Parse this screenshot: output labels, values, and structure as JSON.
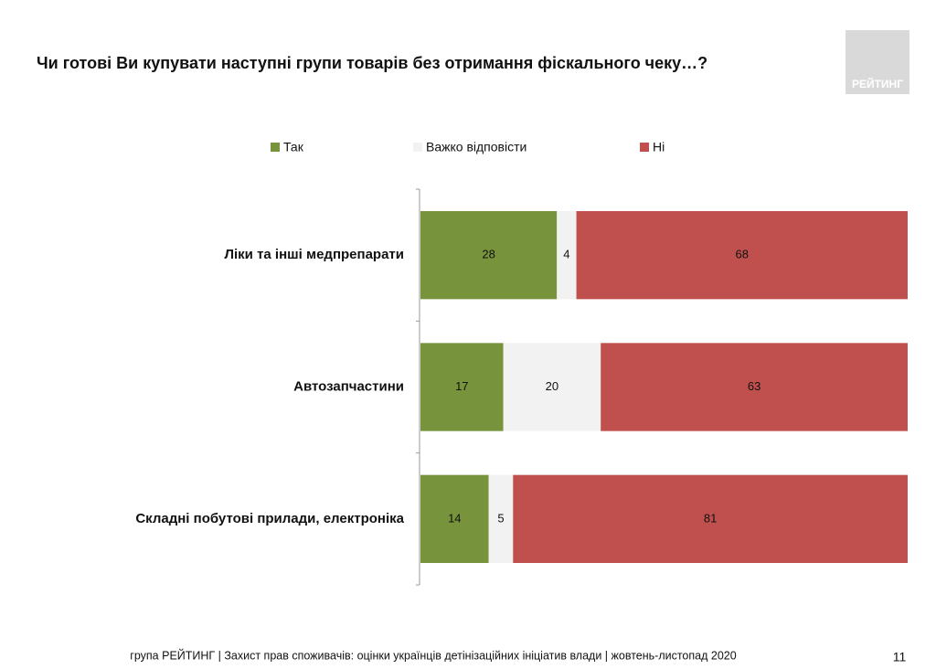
{
  "chart_data": {
    "type": "stacked-bar-horizontal",
    "title": "Чи готові Ви купувати наступні групи товарів без отримання фіскального чеку…?",
    "logo": "РЕЙТИНГ",
    "categories": [
      "Ліки та інші медпрепарати",
      "Автозапчастини",
      "Складні побутові прилади, електроніка"
    ],
    "series": [
      {
        "name": "Так",
        "color": "#77933c",
        "values": [
          28,
          17,
          14
        ]
      },
      {
        "name": "Важко відповісти",
        "color": "#f2f2f2",
        "values": [
          4,
          20,
          5
        ]
      },
      {
        "name": "Ні",
        "color": "#c0504d",
        "values": [
          68,
          63,
          81
        ]
      }
    ],
    "xlim": [
      0,
      100
    ],
    "footer": "група РЕЙТИНГ  | Захист прав споживачів: оцінки українців детінізаційних ініціатив влади  | жовтень-листопад 2020",
    "page_number": 11
  }
}
